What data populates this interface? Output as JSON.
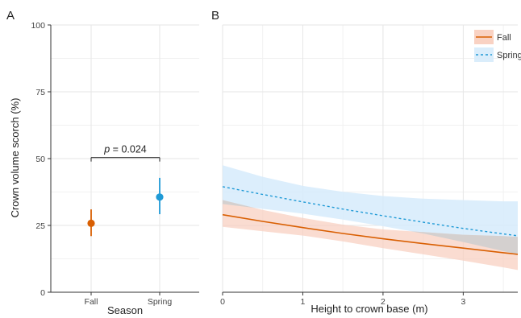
{
  "colors": {
    "fall": "#d95f02",
    "spring": "#1f9ad6",
    "grid": "#e6e6e6",
    "text": "#333333",
    "spring_band": "#d6ebfb",
    "fall_band": "#f8cdbd",
    "overlap_band": "#cfcfcf"
  },
  "chart_data": [
    {
      "type": "scatter",
      "panel_label": "A",
      "xlabel": "Season",
      "ylabel": "Crown volume scorch (%)",
      "ylim": [
        0,
        100
      ],
      "y_ticks": [
        "0",
        "25",
        "50",
        "75",
        "100"
      ],
      "grid": true,
      "categories": [
        "Fall",
        "Spring"
      ],
      "points": [
        {
          "category": "Fall",
          "value": 25.8,
          "lower": 21.0,
          "upper": 31.0
        },
        {
          "category": "Spring",
          "value": 35.6,
          "lower": 29.2,
          "upper": 42.8
        }
      ],
      "annotation": {
        "p_label": "p",
        "text": " = 0.024",
        "y": 50.4
      }
    },
    {
      "type": "line",
      "panel_label": "B",
      "xlabel": "Height to crown base (m)",
      "xlim": [
        0,
        3.68
      ],
      "ylim": [
        0,
        100
      ],
      "x_ticks": [
        "0",
        "1",
        "2",
        "3"
      ],
      "grid": true,
      "legend_position": "top-right",
      "series": [
        {
          "name": "Fall",
          "line_style": "solid",
          "x": [
            0,
            0.5,
            1,
            1.5,
            2,
            2.5,
            3,
            3.5,
            3.68
          ],
          "values": [
            29.0,
            26.5,
            24.2,
            22.0,
            20.0,
            18.2,
            16.5,
            14.8,
            14.2
          ],
          "lower": [
            24.5,
            22.8,
            21.2,
            19.0,
            16.5,
            14.2,
            11.8,
            9.3,
            8.3
          ],
          "upper": [
            34.5,
            30.8,
            27.8,
            25.3,
            23.5,
            22.5,
            21.5,
            21.0,
            20.7
          ]
        },
        {
          "name": "Spring",
          "line_style": "dashed",
          "x": [
            0,
            0.5,
            1,
            1.5,
            2,
            2.5,
            3,
            3.5,
            3.68
          ],
          "values": [
            39.5,
            36.6,
            33.8,
            31.1,
            28.6,
            26.2,
            23.9,
            21.8,
            21.1
          ],
          "lower": [
            33.0,
            31.2,
            29.4,
            27.2,
            24.7,
            22.0,
            18.8,
            15.4,
            14.2
          ],
          "upper": [
            47.5,
            43.2,
            39.8,
            37.6,
            36.0,
            35.0,
            34.5,
            34.0,
            34.0
          ]
        }
      ]
    }
  ]
}
